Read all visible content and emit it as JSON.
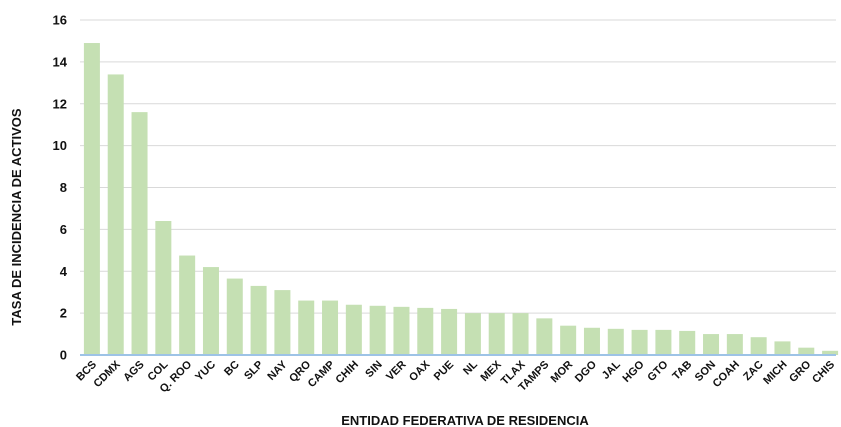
{
  "chart_data": {
    "type": "bar",
    "xlabel": "ENTIDAD FEDERATIVA DE RESIDENCIA",
    "ylabel": "TASA DE INCIDENCIA DE ACTIVOS",
    "ylim": [
      0,
      16
    ],
    "yticks": [
      "0",
      "2",
      "4",
      "6",
      "8",
      "10",
      "12",
      "14",
      "16"
    ],
    "grid": true,
    "legend": "none",
    "categories": [
      "BCS",
      "CDMX",
      "AGS",
      "COL",
      "Q. ROO",
      "YUC",
      "BC",
      "SLP",
      "NAY",
      "QRO",
      "CAMP",
      "CHIH",
      "SIN",
      "VER",
      "OAX",
      "PUE",
      "NL",
      "MEX",
      "TLAX",
      "TAMPS",
      "MOR",
      "DGO",
      "JAL",
      "HGO",
      "GTO",
      "TAB",
      "SON",
      "COAH",
      "ZAC",
      "MICH",
      "GRO",
      "CHIS"
    ],
    "values": [
      14.9,
      13.4,
      11.6,
      6.4,
      4.75,
      4.2,
      3.65,
      3.3,
      3.1,
      2.6,
      2.6,
      2.4,
      2.35,
      2.3,
      2.25,
      2.2,
      2.0,
      2.0,
      2.0,
      1.75,
      1.4,
      1.3,
      1.25,
      1.2,
      1.2,
      1.15,
      1.0,
      1.0,
      0.85,
      0.65,
      0.35,
      0.2
    ],
    "colors": {
      "bar": "#c5e0b3",
      "grid": "#d9d9d9",
      "baseline": "#9dc3e6"
    }
  }
}
